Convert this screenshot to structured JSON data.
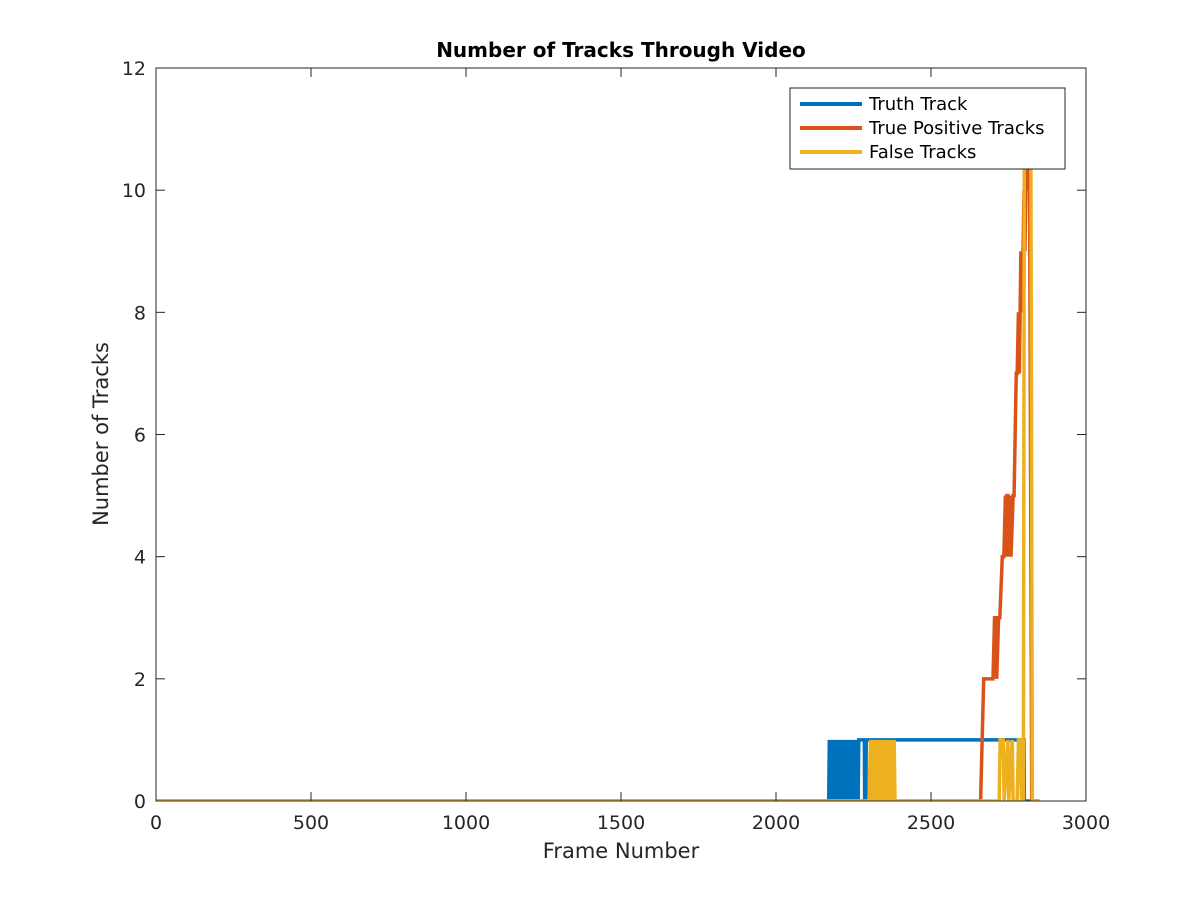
{
  "chart_data": {
    "type": "line",
    "title": "Number of Tracks Through Video",
    "xlabel": "Frame Number",
    "ylabel": "Number of Tracks",
    "xlim": [
      0,
      3000
    ],
    "ylim": [
      0,
      12
    ],
    "xticks": [
      "0",
      "500",
      "1000",
      "1500",
      "2000",
      "2500",
      "3000"
    ],
    "yticks": [
      "0",
      "2",
      "4",
      "6",
      "8",
      "10",
      "12"
    ],
    "grid": false,
    "legend_position": "top-right",
    "series": [
      {
        "name": "Truth Track",
        "color": "#0072BD",
        "x": [
          0,
          2170,
          2172,
          2175,
          2177,
          2180,
          2182,
          2185,
          2187,
          2190,
          2192,
          2195,
          2197,
          2200,
          2202,
          2205,
          2207,
          2210,
          2212,
          2215,
          2217,
          2220,
          2222,
          2225,
          2227,
          2230,
          2232,
          2235,
          2237,
          2240,
          2242,
          2245,
          2247,
          2250,
          2252,
          2255,
          2257,
          2260,
          2262,
          2265,
          2267,
          2270,
          2285,
          2286,
          2290,
          2291,
          2306,
          2307,
          2312,
          2313,
          2800,
          2801,
          2850
        ],
        "y": [
          0,
          0,
          1,
          0,
          1,
          0,
          1,
          0,
          1,
          0,
          1,
          0,
          1,
          0,
          1,
          0,
          1,
          0,
          1,
          0,
          1,
          0,
          1,
          0,
          1,
          0,
          1,
          0,
          1,
          0,
          1,
          0,
          1,
          0,
          1,
          0,
          1,
          0,
          1,
          0,
          1,
          1,
          1,
          0,
          0,
          1,
          1,
          0,
          0,
          1,
          1,
          0,
          0
        ]
      },
      {
        "name": "True Positive Tracks",
        "color": "#D95319",
        "x": [
          0,
          2660,
          2670,
          2700,
          2705,
          2710,
          2712,
          2718,
          2722,
          2730,
          2735,
          2740,
          2742,
          2745,
          2748,
          2752,
          2755,
          2758,
          2765,
          2768,
          2775,
          2778,
          2782,
          2785,
          2790,
          2793,
          2797,
          2800,
          2803,
          2806,
          2810,
          2812,
          2815,
          2818,
          2825,
          2828,
          2850
        ],
        "y": [
          0,
          0,
          2,
          2,
          3,
          3,
          2,
          3,
          3,
          4,
          4,
          5,
          4,
          5,
          5,
          4,
          5,
          4,
          5,
          5,
          7,
          7,
          8,
          7,
          9,
          8,
          9,
          10,
          9,
          10,
          11,
          10,
          11,
          10,
          0,
          0,
          0
        ]
      },
      {
        "name": "False Tracks",
        "color": "#EDB120",
        "x": [
          0,
          2300,
          2305,
          2310,
          2314,
          2318,
          2322,
          2326,
          2330,
          2334,
          2337,
          2341,
          2345,
          2348,
          2352,
          2356,
          2360,
          2364,
          2368,
          2372,
          2375,
          2378,
          2381,
          2384,
          2720,
          2723,
          2733,
          2736,
          2748,
          2751,
          2762,
          2765,
          2778,
          2782,
          2788,
          2792,
          2798,
          2801,
          2806,
          2812,
          2816,
          2822,
          2827,
          2850
        ],
        "y": [
          0,
          0,
          1,
          0,
          1,
          0,
          1,
          0,
          1,
          0,
          1,
          0,
          1,
          0,
          1,
          0,
          1,
          0,
          1,
          0,
          1,
          0,
          1,
          0,
          0,
          1,
          1,
          0,
          1,
          0,
          1,
          0,
          0,
          1,
          1,
          0,
          0,
          11,
          11,
          11,
          11,
          11,
          0,
          0
        ]
      }
    ]
  }
}
